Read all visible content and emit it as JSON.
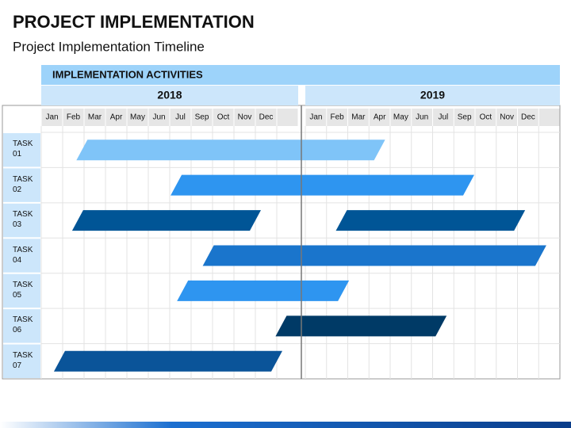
{
  "chart_data": {
    "type": "gantt",
    "title": "PROJECT IMPLEMENTATION",
    "subtitle": "Project Implementation Timeline",
    "header": "IMPLEMENTATION ACTIVITIES",
    "groups": [
      {
        "label": "2018",
        "months": [
          "Jan",
          "Feb",
          "Mar",
          "Apr",
          "May",
          "Jun",
          "Jul",
          "Sep",
          "Oct",
          "Nov",
          "Dec"
        ]
      },
      {
        "label": "2019",
        "months": [
          "Jan",
          "Feb",
          "Mar",
          "Apr",
          "May",
          "Jun",
          "Jul",
          "Sep",
          "Oct",
          "Nov",
          "Dec"
        ]
      }
    ],
    "tasks": [
      {
        "name": "TASK 01",
        "color": "#7fc4f8",
        "bars": [
          {
            "start": 1.9,
            "end": 15.5
          }
        ]
      },
      {
        "name": "TASK 02",
        "color": "#2e95f0",
        "bars": [
          {
            "start": 6.3,
            "end": 19.7
          }
        ]
      },
      {
        "name": "TASK 03",
        "color": "#005596",
        "bars": [
          {
            "start": 1.7,
            "end": 10.0
          },
          {
            "start": 13.7,
            "end": 22.1
          }
        ]
      },
      {
        "name": "TASK 04",
        "color": "#1a75cc",
        "bars": [
          {
            "start": 7.8,
            "end": 23.1
          }
        ]
      },
      {
        "name": "TASK 05",
        "color": "#2e95f0",
        "bars": [
          {
            "start": 6.6,
            "end": 13.8
          }
        ]
      },
      {
        "name": "TASK 06",
        "color": "#003a66",
        "bars": [
          {
            "start": 11.2,
            "end": 18.4
          }
        ]
      },
      {
        "name": "TASK 07",
        "color": "#0a5499",
        "bars": [
          {
            "start": 0.85,
            "end": 11.0
          }
        ]
      }
    ]
  }
}
